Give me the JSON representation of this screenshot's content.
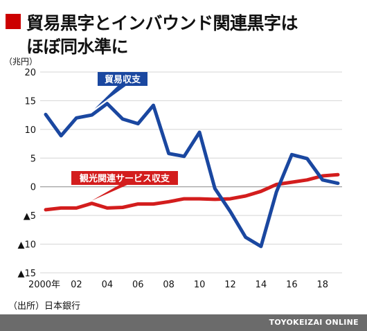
{
  "title": {
    "line1": "貿易黒字とインバウンド関連黒字は",
    "line2": "ほぼ同水準に"
  },
  "colors": {
    "accent": "#cc0000",
    "trade": "#1a47a0",
    "tourism": "#d31d1d"
  },
  "source": "（出所）日本銀行",
  "footer": "TOYOKEIZAI ONLINE",
  "chart_data": {
    "type": "line",
    "unit_label": "（兆円）",
    "ylim": [
      -15,
      20
    ],
    "yticks": [
      20,
      15,
      10,
      5,
      0,
      -5,
      -10,
      -15
    ],
    "ytick_labels": [
      "20",
      "15",
      "10",
      "5",
      "0",
      "▲5",
      "▲10",
      "▲15"
    ],
    "xlim": [
      2000,
      2019
    ],
    "xticks": [
      2000,
      2002,
      2004,
      2006,
      2008,
      2010,
      2012,
      2014,
      2016,
      2018
    ],
    "xtick_labels": [
      "2000年",
      "02",
      "04",
      "06",
      "08",
      "10",
      "12",
      "14",
      "16",
      "18"
    ],
    "grid": true,
    "x": [
      2000,
      2001,
      2002,
      2003,
      2004,
      2005,
      2006,
      2007,
      2008,
      2009,
      2010,
      2011,
      2012,
      2013,
      2014,
      2015,
      2016,
      2017,
      2018,
      2019
    ],
    "series": [
      {
        "name": "貿易収支",
        "color": "#1a47a0",
        "values": [
          12.6,
          8.9,
          12.0,
          12.5,
          14.5,
          11.8,
          11.0,
          14.2,
          5.8,
          5.3,
          9.5,
          -0.3,
          -4.3,
          -8.8,
          -10.4,
          -0.9,
          5.6,
          4.9,
          1.2,
          0.6
        ]
      },
      {
        "name": "観光関連サービス収支",
        "color": "#d31d1d",
        "values": [
          -4.0,
          -3.7,
          -3.7,
          -2.9,
          -3.7,
          -3.6,
          -3.0,
          -3.0,
          -2.6,
          -2.1,
          -2.1,
          -2.2,
          -2.1,
          -1.6,
          -0.8,
          0.4,
          0.8,
          1.2,
          1.9,
          2.1
        ]
      }
    ]
  }
}
